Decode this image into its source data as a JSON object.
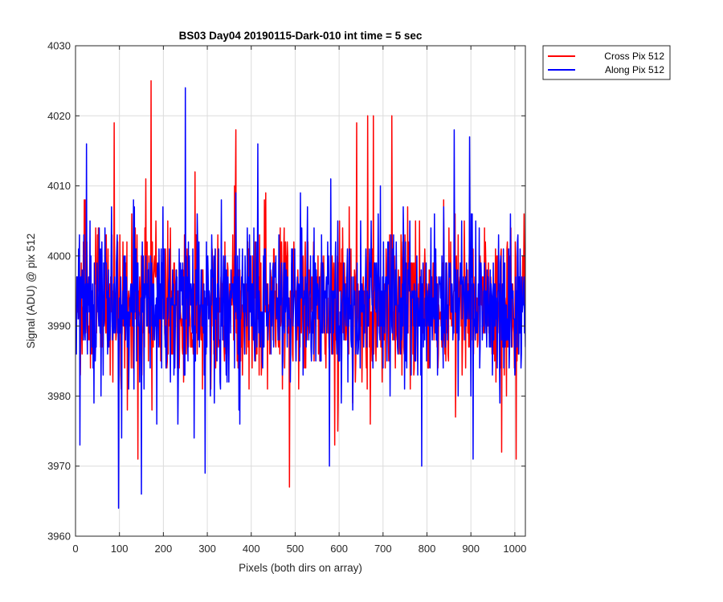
{
  "chart_data": {
    "type": "line",
    "title": "BS03 Day04 20190115-Dark-010 int time = 5 sec",
    "xlabel": "Pixels (both dirs on array)",
    "ylabel": "Signal (ADU) @ pix 512",
    "xlim": [
      0,
      1024
    ],
    "ylim": [
      3960,
      4030
    ],
    "xticks": [
      0,
      100,
      200,
      300,
      400,
      500,
      600,
      700,
      800,
      900,
      1000
    ],
    "yticks": [
      3960,
      3970,
      3980,
      3990,
      4000,
      4010,
      4020,
      4030
    ],
    "grid": true,
    "legend_position": "outside-top-right",
    "series": [
      {
        "name": "Cross Pix 512",
        "color": "#ff0000",
        "x_start": 1,
        "x_end": 1024,
        "description": "dark-frame noise around ~3993 ADU",
        "notable_points": [
          {
            "x": 172,
            "y": 4025
          },
          {
            "x": 88,
            "y": 4019
          },
          {
            "x": 665,
            "y": 4020
          },
          {
            "x": 678,
            "y": 4020
          },
          {
            "x": 720,
            "y": 4020
          },
          {
            "x": 487,
            "y": 3967
          },
          {
            "x": 142,
            "y": 3971
          },
          {
            "x": 1003,
            "y": 3971
          },
          {
            "x": 970,
            "y": 3972
          },
          {
            "x": 590,
            "y": 3973
          },
          {
            "x": 365,
            "y": 4018
          },
          {
            "x": 640,
            "y": 4019
          }
        ]
      },
      {
        "name": "Along Pix 512",
        "color": "#0000ff",
        "x_start": 1,
        "x_end": 1024,
        "description": "dark-frame noise around ~3993 ADU",
        "notable_points": [
          {
            "x": 250,
            "y": 4024
          },
          {
            "x": 25,
            "y": 4016
          },
          {
            "x": 98,
            "y": 3964
          },
          {
            "x": 150,
            "y": 3966
          },
          {
            "x": 295,
            "y": 3969
          },
          {
            "x": 10,
            "y": 3973
          },
          {
            "x": 105,
            "y": 3974
          },
          {
            "x": 270,
            "y": 3974
          },
          {
            "x": 788,
            "y": 3970
          },
          {
            "x": 578,
            "y": 3970
          },
          {
            "x": 905,
            "y": 3971
          },
          {
            "x": 862,
            "y": 4018
          },
          {
            "x": 897,
            "y": 4017
          },
          {
            "x": 415,
            "y": 4016
          },
          {
            "x": 990,
            "y": 4006
          }
        ]
      }
    ]
  }
}
